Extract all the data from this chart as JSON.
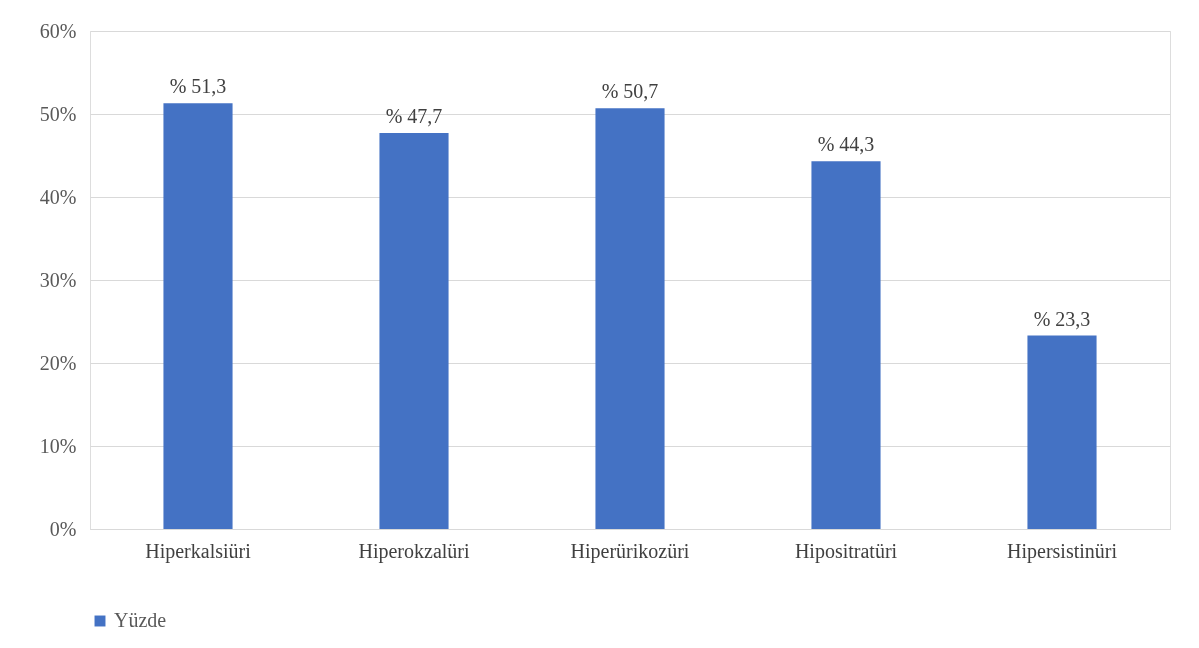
{
  "chart_data": {
    "type": "bar",
    "categories": [
      "Hiperkalsiüri",
      "Hiperokzalüri",
      "Hiperürikozüri",
      "Hipositratüri",
      "Hipersistinüri"
    ],
    "series": [
      {
        "name": "Yüzde",
        "color": "#4472c4",
        "values": [
          51.3,
          47.7,
          50.7,
          44.3,
          23.3
        ],
        "value_labels": [
          "% 51,3",
          "% 47,7",
          "% 50,7",
          "% 44,3",
          "% 23,3"
        ]
      }
    ],
    "ylim": [
      0,
      60
    ],
    "yticks": [
      {
        "value": 0,
        "label": "0%"
      },
      {
        "value": 10,
        "label": "10%"
      },
      {
        "value": 20,
        "label": "20%"
      },
      {
        "value": 30,
        "label": "30%"
      },
      {
        "value": 40,
        "label": "40%"
      },
      {
        "value": 50,
        "label": "50%"
      },
      {
        "value": 60,
        "label": "60%"
      }
    ],
    "grid": "y",
    "legend": "bottom"
  }
}
